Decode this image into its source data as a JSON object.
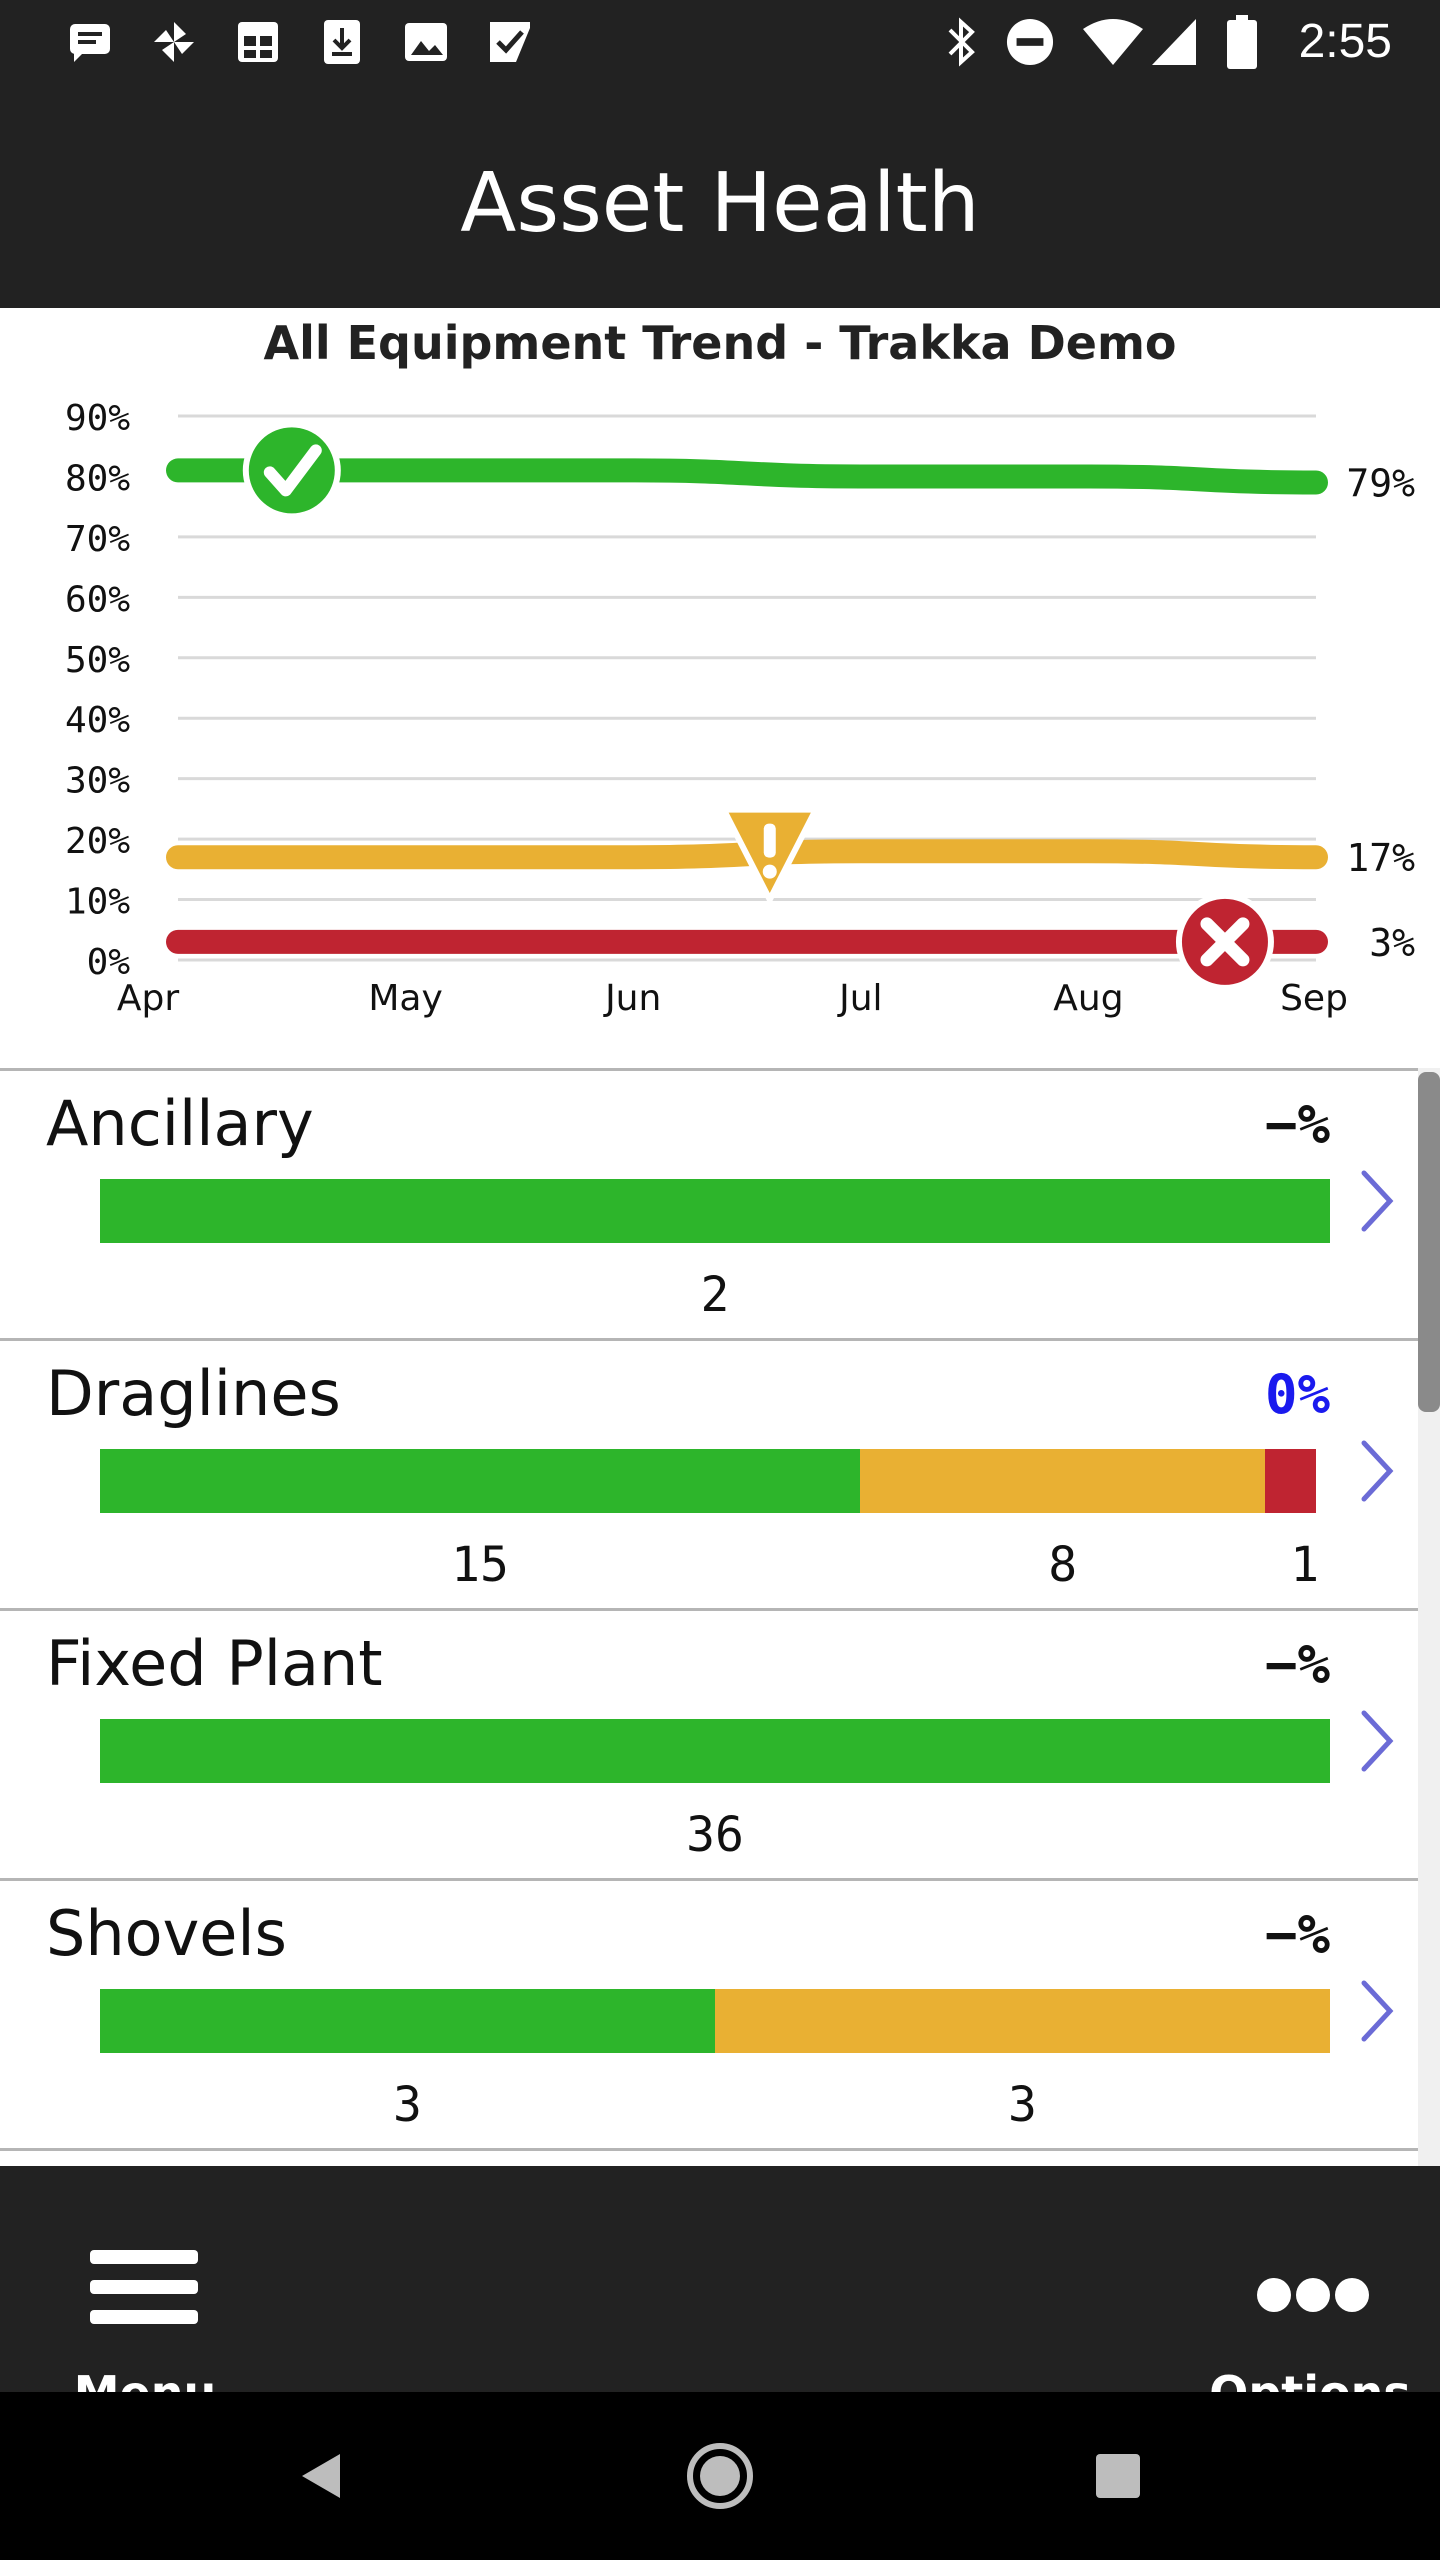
{
  "status_bar": {
    "time": "2:55",
    "left_icons": [
      "message-icon",
      "pinwheel-icon",
      "calendar-icon",
      "download-icon",
      "image-icon",
      "checklist-icon"
    ],
    "right_icons": [
      "bluetooth-icon",
      "do-not-disturb-icon",
      "wifi-icon",
      "signal-icon",
      "battery-icon"
    ]
  },
  "header": {
    "title": "Asset Health"
  },
  "chart_data": {
    "type": "line",
    "title": "All Equipment Trend - Trakka Demo",
    "x": [
      "Apr",
      "May",
      "Jun",
      "Jul",
      "Aug",
      "Sep"
    ],
    "y_ticks": [
      "90%",
      "80%",
      "70%",
      "60%",
      "50%",
      "40%",
      "30%",
      "20%",
      "10%",
      "0%"
    ],
    "ylim": [
      0,
      90
    ],
    "grid": true,
    "series": [
      {
        "color": "#2db52b",
        "values": [
          81,
          81,
          81,
          80,
          80,
          79
        ],
        "end_label": "79%",
        "marker": "check-icon",
        "marker_x": 0.5
      },
      {
        "color": "#e9b033",
        "values": [
          17,
          17,
          17,
          18,
          18,
          17
        ],
        "end_label": "17%",
        "marker": "warning-icon",
        "marker_x": 2.6
      },
      {
        "color": "#bf2431",
        "values": [
          3,
          3,
          3,
          3,
          3,
          3
        ],
        "end_label": "3%",
        "marker": "error-icon",
        "marker_x": 4.6
      }
    ]
  },
  "colors": {
    "good": "#2db52b",
    "warn": "#e9b033",
    "bad": "#bf2431",
    "chevron": "#6b6bd6"
  },
  "categories": [
    {
      "name": "Ancillary",
      "percent": "−%",
      "percent_highlight": false,
      "segments": [
        {
          "status": "good",
          "count": 2
        }
      ]
    },
    {
      "name": "Draglines",
      "percent": "0%",
      "percent_highlight": true,
      "segments": [
        {
          "status": "good",
          "count": 15
        },
        {
          "status": "warn",
          "count": 8
        },
        {
          "status": "bad",
          "count": 1
        }
      ]
    },
    {
      "name": "Fixed Plant",
      "percent": "−%",
      "percent_highlight": false,
      "segments": [
        {
          "status": "good",
          "count": 36
        }
      ]
    },
    {
      "name": "Shovels",
      "percent": "−%",
      "percent_highlight": false,
      "segments": [
        {
          "status": "good",
          "count": 3
        },
        {
          "status": "warn",
          "count": 3
        }
      ]
    }
  ],
  "bottom_bar": {
    "menu_label": "Menu",
    "options_label": "Options"
  },
  "nav_bar": {
    "buttons": [
      "back-icon",
      "home-icon",
      "recents-icon"
    ]
  }
}
